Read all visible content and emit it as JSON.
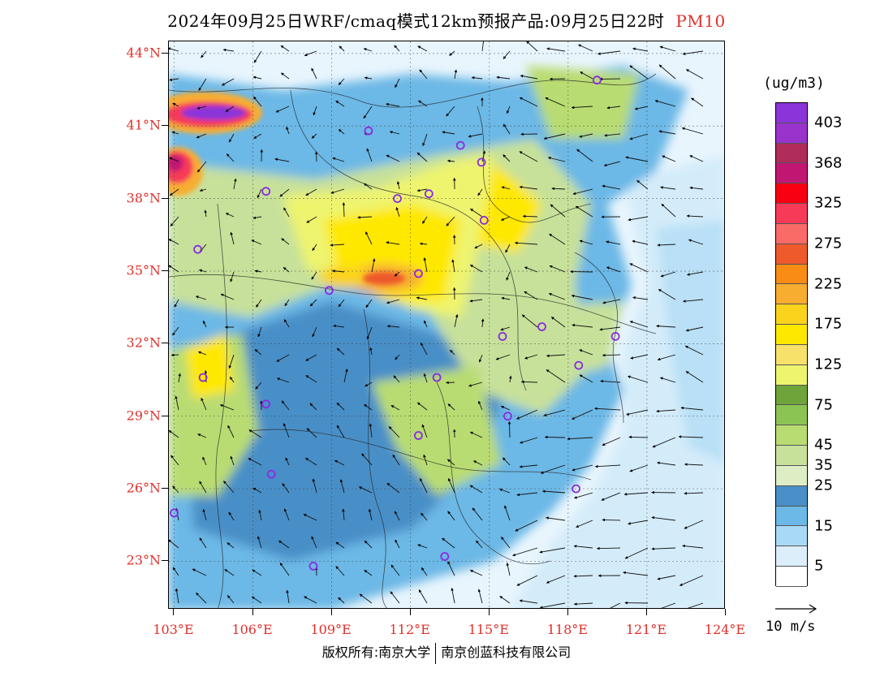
{
  "title": "2024年09月25日WRF/cmaq模式12km预报产品:09月25日22时",
  "pollutant": "PM10",
  "lat_labels": [
    {
      "label": "44°N",
      "value": 44
    },
    {
      "label": "41°N",
      "value": 41
    },
    {
      "label": "38°N",
      "value": 38
    },
    {
      "label": "35°N",
      "value": 35
    },
    {
      "label": "32°N",
      "value": 32
    },
    {
      "label": "29°N",
      "value": 29
    },
    {
      "label": "26°N",
      "value": 26
    },
    {
      "label": "23°N",
      "value": 23
    }
  ],
  "lon_labels": [
    {
      "label": "103°E",
      "value": 103
    },
    {
      "label": "106°E",
      "value": 106
    },
    {
      "label": "109°E",
      "value": 109
    },
    {
      "label": "112°E",
      "value": 112
    },
    {
      "label": "115°E",
      "value": 115
    },
    {
      "label": "118°E",
      "value": 118
    },
    {
      "label": "121°E",
      "value": 121
    },
    {
      "label": "124°E",
      "value": 124
    }
  ],
  "colorbar": {
    "unit": "(ug/m3)",
    "colors": [
      "#ffffff",
      "#dbeefa",
      "#a8daf5",
      "#6cb8e6",
      "#4a8fc7",
      "#dfedc4",
      "#c7e19a",
      "#b9dc72",
      "#8cc454",
      "#6ea43a",
      "#eef46e",
      "#f7e16a",
      "#ffe800",
      "#fbd31c",
      "#f7ad30",
      "#f88c14",
      "#ee5a2c",
      "#fa6a66",
      "#f73a58",
      "#f80012",
      "#c21673",
      "#b02c5a",
      "#9933cc",
      "#8a34d9"
    ],
    "labels": [
      {
        "text": "403",
        "index": 22
      },
      {
        "text": "368",
        "index": 20
      },
      {
        "text": "325",
        "index": 18
      },
      {
        "text": "275",
        "index": 16
      },
      {
        "text": "225",
        "index": 14
      },
      {
        "text": "175",
        "index": 12
      },
      {
        "text": "125",
        "index": 10
      },
      {
        "text": "75",
        "index": 8
      },
      {
        "text": "45",
        "index": 6
      },
      {
        "text": "35",
        "index": 5
      },
      {
        "text": "25",
        "index": 4
      },
      {
        "text": "15",
        "index": 2
      },
      {
        "text": "5",
        "index": 0
      }
    ]
  },
  "vector_ref": "10 m/s",
  "footer": {
    "left": "版权所有:南京大学",
    "right": "南京创蓝科技有限公司"
  },
  "city_markers": [
    [
      119.1,
      42.9
    ],
    [
      110.4,
      40.8
    ],
    [
      113.9,
      40.2
    ],
    [
      114.7,
      39.5
    ],
    [
      111.5,
      38.0
    ],
    [
      112.7,
      38.2
    ],
    [
      114.8,
      37.1
    ],
    [
      103.9,
      35.9
    ],
    [
      112.3,
      34.9
    ],
    [
      108.9,
      34.2
    ],
    [
      106.5,
      38.3
    ],
    [
      117.0,
      32.7
    ],
    [
      115.5,
      32.3
    ],
    [
      119.8,
      32.3
    ],
    [
      118.4,
      31.1
    ],
    [
      104.1,
      30.6
    ],
    [
      113.0,
      30.6
    ],
    [
      106.5,
      29.5
    ],
    [
      115.7,
      29.0
    ],
    [
      112.3,
      28.2
    ],
    [
      106.7,
      26.6
    ],
    [
      118.3,
      26.0
    ],
    [
      103.0,
      25.0
    ],
    [
      108.3,
      22.8
    ],
    [
      113.3,
      23.2
    ]
  ]
}
